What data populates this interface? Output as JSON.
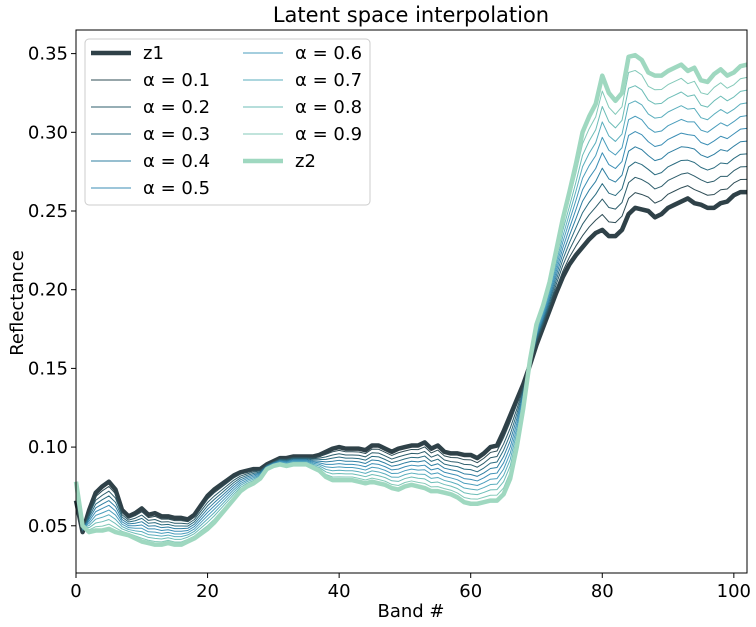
{
  "chart_data": {
    "type": "line",
    "title": "Latent space interpolation",
    "xlabel": "Band #",
    "ylabel": "Reflectance",
    "xlim": [
      0,
      102
    ],
    "ylim": [
      0.02,
      0.365
    ],
    "xticks": [
      0,
      20,
      40,
      60,
      80,
      100
    ],
    "xtick_labels": [
      "0",
      "20",
      "40",
      "60",
      "80",
      "100"
    ],
    "yticks": [
      0.05,
      0.1,
      0.15,
      0.2,
      0.25,
      0.3,
      0.35
    ],
    "ytick_labels": [
      "0.05",
      "0.10",
      "0.15",
      "0.20",
      "0.25",
      "0.30",
      "0.35"
    ],
    "grid": false,
    "legend_position": "upper-left",
    "legend_columns": 2,
    "series_names": [
      "z1",
      "α = 0.1",
      "α = 0.2",
      "α = 0.3",
      "α = 0.4",
      "α = 0.5",
      "α = 0.6",
      "α = 0.7",
      "α = 0.8",
      "α = 0.9",
      "z2"
    ],
    "series_colors": [
      "#2f4148",
      "#2f4d56",
      "#2d5d6b",
      "#2b6c80",
      "#2f7fa2",
      "#3b8eb5",
      "#4a9dbc",
      "#5aaebd",
      "#6dbdb7",
      "#83c9b9",
      "#9fd8c0"
    ],
    "series_widths": [
      4.5,
      1,
      1,
      1,
      1,
      1,
      1,
      1,
      1,
      1,
      4.5
    ],
    "z1": [
      [
        0,
        0.066
      ],
      [
        1,
        0.046
      ],
      [
        2,
        0.06
      ],
      [
        3,
        0.071
      ],
      [
        4,
        0.075
      ],
      [
        5,
        0.078
      ],
      [
        6,
        0.073
      ],
      [
        7,
        0.06
      ],
      [
        8,
        0.056
      ],
      [
        9,
        0.058
      ],
      [
        10,
        0.061
      ],
      [
        11,
        0.057
      ],
      [
        12,
        0.058
      ],
      [
        13,
        0.056
      ],
      [
        14,
        0.056
      ],
      [
        15,
        0.055
      ],
      [
        16,
        0.055
      ],
      [
        17,
        0.054
      ],
      [
        18,
        0.057
      ],
      [
        19,
        0.063
      ],
      [
        20,
        0.069
      ],
      [
        21,
        0.073
      ],
      [
        22,
        0.076
      ],
      [
        23,
        0.079
      ],
      [
        24,
        0.082
      ],
      [
        25,
        0.084
      ],
      [
        26,
        0.085
      ],
      [
        27,
        0.086
      ],
      [
        28,
        0.086
      ],
      [
        29,
        0.089
      ],
      [
        30,
        0.091
      ],
      [
        31,
        0.093
      ],
      [
        32,
        0.093
      ],
      [
        33,
        0.094
      ],
      [
        34,
        0.094
      ],
      [
        35,
        0.094
      ],
      [
        36,
        0.094
      ],
      [
        37,
        0.095
      ],
      [
        38,
        0.097
      ],
      [
        39,
        0.099
      ],
      [
        40,
        0.1
      ],
      [
        41,
        0.099
      ],
      [
        42,
        0.099
      ],
      [
        43,
        0.099
      ],
      [
        44,
        0.098
      ],
      [
        45,
        0.101
      ],
      [
        46,
        0.101
      ],
      [
        47,
        0.099
      ],
      [
        48,
        0.097
      ],
      [
        49,
        0.099
      ],
      [
        50,
        0.1
      ],
      [
        51,
        0.101
      ],
      [
        52,
        0.101
      ],
      [
        53,
        0.103
      ],
      [
        54,
        0.099
      ],
      [
        55,
        0.101
      ],
      [
        56,
        0.097
      ],
      [
        57,
        0.096
      ],
      [
        58,
        0.096
      ],
      [
        59,
        0.095
      ],
      [
        60,
        0.095
      ],
      [
        61,
        0.093
      ],
      [
        62,
        0.096
      ],
      [
        63,
        0.1
      ],
      [
        64,
        0.101
      ],
      [
        65,
        0.11
      ],
      [
        66,
        0.12
      ],
      [
        67,
        0.13
      ],
      [
        68,
        0.14
      ],
      [
        69,
        0.152
      ],
      [
        70,
        0.165
      ],
      [
        71,
        0.176
      ],
      [
        72,
        0.187
      ],
      [
        73,
        0.198
      ],
      [
        74,
        0.208
      ],
      [
        75,
        0.216
      ],
      [
        76,
        0.222
      ],
      [
        77,
        0.227
      ],
      [
        78,
        0.232
      ],
      [
        79,
        0.236
      ],
      [
        80,
        0.238
      ],
      [
        81,
        0.234
      ],
      [
        82,
        0.234
      ],
      [
        83,
        0.238
      ],
      [
        84,
        0.248
      ],
      [
        85,
        0.252
      ],
      [
        86,
        0.251
      ],
      [
        87,
        0.25
      ],
      [
        88,
        0.246
      ],
      [
        89,
        0.248
      ],
      [
        90,
        0.252
      ],
      [
        91,
        0.254
      ],
      [
        92,
        0.256
      ],
      [
        93,
        0.258
      ],
      [
        94,
        0.255
      ],
      [
        95,
        0.254
      ],
      [
        96,
        0.252
      ],
      [
        97,
        0.252
      ],
      [
        98,
        0.255
      ],
      [
        99,
        0.256
      ],
      [
        100,
        0.26
      ],
      [
        101,
        0.262
      ],
      [
        102,
        0.262
      ]
    ],
    "z2": [
      [
        0,
        0.078
      ],
      [
        1,
        0.05
      ],
      [
        2,
        0.046
      ],
      [
        3,
        0.047
      ],
      [
        4,
        0.047
      ],
      [
        5,
        0.048
      ],
      [
        6,
        0.046
      ],
      [
        7,
        0.045
      ],
      [
        8,
        0.044
      ],
      [
        9,
        0.042
      ],
      [
        10,
        0.04
      ],
      [
        11,
        0.039
      ],
      [
        12,
        0.038
      ],
      [
        13,
        0.038
      ],
      [
        14,
        0.039
      ],
      [
        15,
        0.038
      ],
      [
        16,
        0.038
      ],
      [
        17,
        0.04
      ],
      [
        18,
        0.042
      ],
      [
        19,
        0.045
      ],
      [
        20,
        0.048
      ],
      [
        21,
        0.052
      ],
      [
        22,
        0.057
      ],
      [
        23,
        0.062
      ],
      [
        24,
        0.067
      ],
      [
        25,
        0.072
      ],
      [
        26,
        0.075
      ],
      [
        27,
        0.077
      ],
      [
        28,
        0.08
      ],
      [
        29,
        0.086
      ],
      [
        30,
        0.088
      ],
      [
        31,
        0.089
      ],
      [
        32,
        0.088
      ],
      [
        33,
        0.089
      ],
      [
        34,
        0.089
      ],
      [
        35,
        0.089
      ],
      [
        36,
        0.087
      ],
      [
        37,
        0.085
      ],
      [
        38,
        0.081
      ],
      [
        39,
        0.079
      ],
      [
        40,
        0.079
      ],
      [
        41,
        0.079
      ],
      [
        42,
        0.079
      ],
      [
        43,
        0.078
      ],
      [
        44,
        0.077
      ],
      [
        45,
        0.078
      ],
      [
        46,
        0.077
      ],
      [
        47,
        0.076
      ],
      [
        48,
        0.074
      ],
      [
        49,
        0.073
      ],
      [
        50,
        0.075
      ],
      [
        51,
        0.076
      ],
      [
        52,
        0.075
      ],
      [
        53,
        0.074
      ],
      [
        54,
        0.072
      ],
      [
        55,
        0.072
      ],
      [
        56,
        0.071
      ],
      [
        57,
        0.07
      ],
      [
        58,
        0.068
      ],
      [
        59,
        0.065
      ],
      [
        60,
        0.064
      ],
      [
        61,
        0.064
      ],
      [
        62,
        0.065
      ],
      [
        63,
        0.066
      ],
      [
        64,
        0.066
      ],
      [
        65,
        0.07
      ],
      [
        66,
        0.08
      ],
      [
        67,
        0.1
      ],
      [
        68,
        0.125
      ],
      [
        69,
        0.155
      ],
      [
        70,
        0.178
      ],
      [
        71,
        0.19
      ],
      [
        72,
        0.205
      ],
      [
        73,
        0.225
      ],
      [
        74,
        0.245
      ],
      [
        75,
        0.262
      ],
      [
        76,
        0.28
      ],
      [
        77,
        0.3
      ],
      [
        78,
        0.31
      ],
      [
        79,
        0.318
      ],
      [
        80,
        0.336
      ],
      [
        81,
        0.325
      ],
      [
        82,
        0.32
      ],
      [
        83,
        0.325
      ],
      [
        84,
        0.348
      ],
      [
        85,
        0.349
      ],
      [
        86,
        0.346
      ],
      [
        87,
        0.338
      ],
      [
        88,
        0.336
      ],
      [
        89,
        0.336
      ],
      [
        90,
        0.339
      ],
      [
        91,
        0.341
      ],
      [
        92,
        0.343
      ],
      [
        93,
        0.339
      ],
      [
        94,
        0.341
      ],
      [
        95,
        0.333
      ],
      [
        96,
        0.332
      ],
      [
        97,
        0.337
      ],
      [
        98,
        0.34
      ],
      [
        99,
        0.336
      ],
      [
        100,
        0.338
      ],
      [
        101,
        0.342
      ],
      [
        102,
        0.343
      ]
    ]
  }
}
